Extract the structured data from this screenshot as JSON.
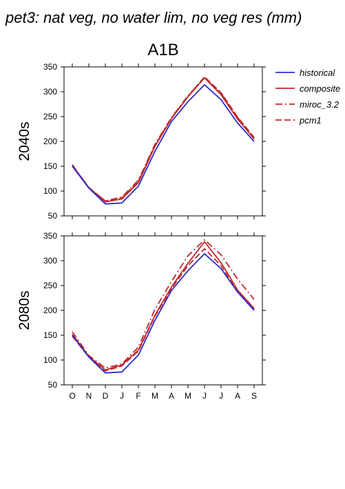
{
  "figure": {
    "title": "pet3: nat veg, no water lim, no veg res (mm)",
    "scenario": "A1B"
  },
  "colors": {
    "historical": "#2b2bc9",
    "composite": "#c0282d",
    "miroc_3.2": "#c0282d",
    "pcm1": "#c0282d"
  },
  "legend": [
    {
      "key": "historical",
      "label": "historical",
      "dash": "solid",
      "color": "#2b2bc9"
    },
    {
      "key": "composite",
      "label": "composite",
      "dash": "solid",
      "color": "#c0282d"
    },
    {
      "key": "miroc_3.2",
      "label": "miroc_3.2",
      "dash": "dashdot",
      "color": "#c0282d"
    },
    {
      "key": "pcm1",
      "label": "pcm1",
      "dash": "dash",
      "color": "#c0282d"
    }
  ],
  "chart_data": [
    {
      "type": "line",
      "panel_label": "2040s",
      "title": "A1B",
      "categories": [
        "O",
        "N",
        "D",
        "J",
        "F",
        "M",
        "A",
        "M",
        "J",
        "J",
        "A",
        "S"
      ],
      "ylim": [
        50,
        350
      ],
      "yticks": [
        50,
        100,
        150,
        200,
        250,
        300,
        350
      ],
      "series": [
        {
          "name": "historical",
          "values": [
            150,
            106,
            74,
            76,
            110,
            180,
            240,
            280,
            314,
            284,
            237,
            200
          ]
        },
        {
          "name": "composite",
          "values": [
            152,
            107,
            78,
            84,
            117,
            190,
            246,
            290,
            328,
            294,
            245,
            205
          ]
        },
        {
          "name": "miroc_3.2",
          "values": [
            153,
            107,
            80,
            88,
            122,
            194,
            248,
            292,
            328,
            297,
            248,
            207
          ]
        },
        {
          "name": "pcm1",
          "values": [
            151,
            107,
            80,
            86,
            120,
            192,
            247,
            291,
            330,
            298,
            249,
            208
          ]
        }
      ]
    },
    {
      "type": "line",
      "panel_label": "2080s",
      "categories": [
        "O",
        "N",
        "D",
        "J",
        "F",
        "M",
        "A",
        "M",
        "J",
        "J",
        "A",
        "S"
      ],
      "ylim": [
        50,
        350
      ],
      "yticks": [
        50,
        100,
        150,
        200,
        250,
        300,
        350
      ],
      "series": [
        {
          "name": "historical",
          "values": [
            150,
            106,
            74,
            76,
            110,
            180,
            240,
            280,
            314,
            284,
            237,
            200
          ]
        },
        {
          "name": "composite",
          "values": [
            152,
            107,
            80,
            90,
            120,
            190,
            247,
            295,
            338,
            296,
            241,
            204
          ]
        },
        {
          "name": "miroc_3.2",
          "values": [
            157,
            109,
            84,
            92,
            126,
            202,
            258,
            310,
            342,
            312,
            263,
            222
          ]
        },
        {
          "name": "pcm1",
          "values": [
            148,
            106,
            78,
            88,
            118,
            188,
            244,
            290,
            324,
            290,
            237,
            202
          ]
        }
      ]
    }
  ]
}
